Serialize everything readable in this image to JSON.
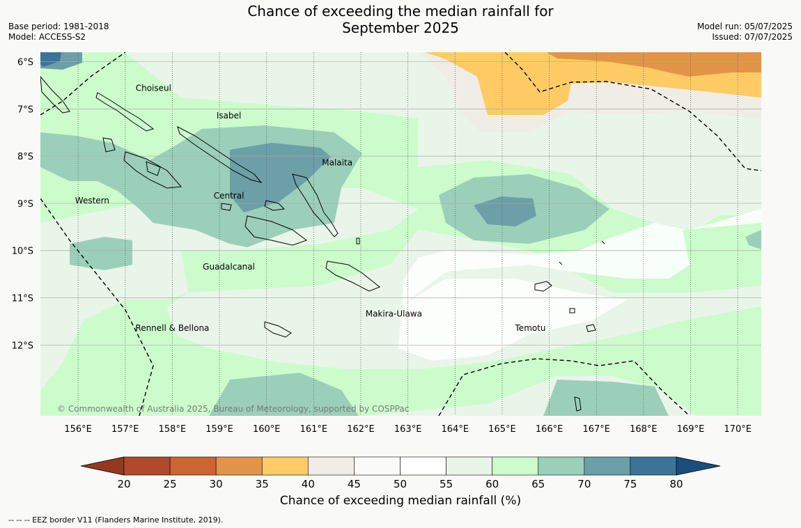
{
  "title_line1": "Chance of exceeding the median rainfall for",
  "title_line2": "September 2025",
  "base_period": "Base period: 1981-2018",
  "model": "Model: ACCESS-S2",
  "model_run": "Model run: 05/07/2025",
  "issued": "Issued: 07/07/2025",
  "copyright": "© Commonwealth of Australia 2025, Bureau of Meteorology, supported by COSPPac",
  "footer_note": "-- -- -- EEZ border V11 (Flanders Marine Institute, 2019).",
  "map": {
    "lon_range": [
      155.2,
      170.5
    ],
    "lat_range": [
      -13.5,
      -5.8
    ],
    "lon_labels": [
      "156°E",
      "157°E",
      "158°E",
      "159°E",
      "160°E",
      "161°E",
      "162°E",
      "163°E",
      "164°E",
      "165°E",
      "166°E",
      "167°E",
      "168°E",
      "169°E",
      "170°E"
    ],
    "lon_values": [
      156,
      157,
      158,
      159,
      160,
      161,
      162,
      163,
      164,
      165,
      166,
      167,
      168,
      169,
      170
    ],
    "lat_labels": [
      "6°S",
      "7°S",
      "8°S",
      "9°S",
      "10°S",
      "11°S",
      "12°S"
    ],
    "lat_values": [
      -6,
      -7,
      -8,
      -9,
      -10,
      -11,
      -12
    ],
    "regions": [
      {
        "name": "Choiseul",
        "lon": 157.6,
        "lat": -6.62
      },
      {
        "name": "Isabel",
        "lon": 159.2,
        "lat": -7.2
      },
      {
        "name": "Malaita",
        "lon": 161.5,
        "lat": -8.2
      },
      {
        "name": "Western",
        "lon": 156.3,
        "lat": -9.0
      },
      {
        "name": "Central",
        "lon": 159.2,
        "lat": -8.9
      },
      {
        "name": "Guadalcanal",
        "lon": 159.2,
        "lat": -10.4
      },
      {
        "name": "Makira-Ulawa",
        "lon": 162.7,
        "lat": -11.4
      },
      {
        "name": "Rennell & Bellona",
        "lon": 158.0,
        "lat": -11.7
      },
      {
        "name": "Temotu",
        "lon": 165.6,
        "lat": -11.7
      }
    ],
    "colors": {
      "c20_25": "#b04a2b",
      "c25_30": "#cd6433",
      "c30_35": "#e39448",
      "c35_40": "#fecb65",
      "c40_45": "#f0ede6",
      "c45_50": "#fafbf8",
      "c50_55": "#ffffff",
      "c55_60": "#eaf5ea",
      "c60_65": "#ccfccc",
      "c65_70": "#9bcfba",
      "c70_75": "#6c9fa7",
      "c75_80": "#3c7398",
      "over80": "#1a4e7e",
      "under20": "#94381e"
    }
  },
  "colorbar": {
    "ticks": [
      "20",
      "25",
      "30",
      "35",
      "40",
      "45",
      "50",
      "55",
      "60",
      "65",
      "70",
      "75",
      "80"
    ],
    "colors": [
      "#b04a2b",
      "#cd6433",
      "#e39448",
      "#fecb65",
      "#f0ede6",
      "#fafbf8",
      "#ffffff",
      "#eaf5ea",
      "#ccfccc",
      "#9bcfba",
      "#6c9fa7",
      "#3c7398"
    ],
    "under_color": "#94381e",
    "over_color": "#1a4e7e",
    "label": "Chance of exceeding median rainfall (%)"
  }
}
